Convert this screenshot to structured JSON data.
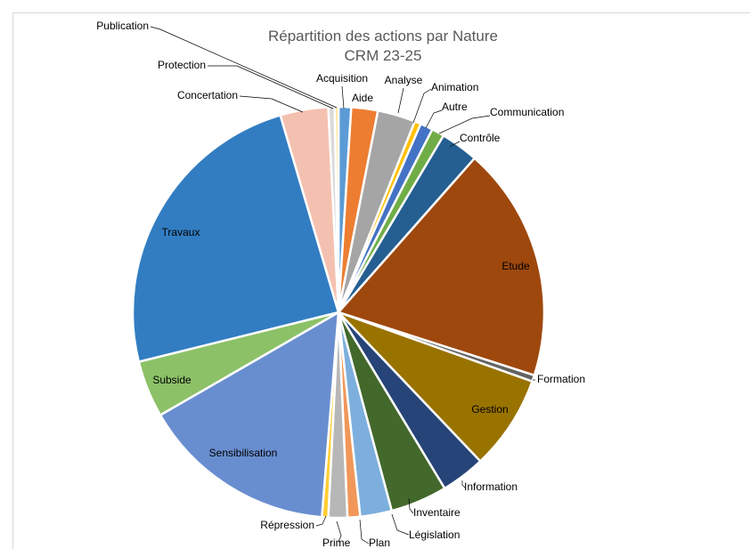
{
  "chart_data": {
    "type": "pie",
    "title": "Répartition des actions par Nature",
    "subtitle": "CRM 23-25",
    "slices": [
      {
        "label": "Acquisition",
        "value": 1.0,
        "color": "#5b9bd5"
      },
      {
        "label": "Aide",
        "value": 2.1,
        "color": "#ed7d31"
      },
      {
        "label": "Analyse",
        "value": 3.0,
        "color": "#a5a5a5"
      },
      {
        "label": "Animation",
        "value": 0.5,
        "color": "#ffc000"
      },
      {
        "label": "Autre",
        "value": 1.0,
        "color": "#4472c4"
      },
      {
        "label": "Communication",
        "value": 1.0,
        "color": "#70ad47"
      },
      {
        "label": "Contrôle",
        "value": 3.0,
        "color": "#255e91"
      },
      {
        "label": "Etude",
        "value": 18.6,
        "color": "#9e480e"
      },
      {
        "label": "Formation",
        "value": 0.5,
        "color": "#636363"
      },
      {
        "label": "Gestion",
        "value": 7.5,
        "color": "#997300"
      },
      {
        "label": "Information",
        "value": 3.5,
        "color": "#264478"
      },
      {
        "label": "Inventaire",
        "value": 4.5,
        "color": "#43682b"
      },
      {
        "label": "Législation",
        "value": 2.5,
        "color": "#7cafdd"
      },
      {
        "label": "Plan",
        "value": 1.0,
        "color": "#f1975a"
      },
      {
        "label": "Prime",
        "value": 1.5,
        "color": "#b7b7b7"
      },
      {
        "label": "Répression",
        "value": 0.5,
        "color": "#ffcd33"
      },
      {
        "label": "Sensibilisation",
        "value": 15.5,
        "color": "#698ed0"
      },
      {
        "label": "Subside",
        "value": 4.5,
        "color": "#8cc168"
      },
      {
        "label": "Travaux",
        "value": 24.5,
        "color": "#327dc2"
      },
      {
        "label": "Concertation",
        "value": 3.8,
        "color": "#f4c1b0"
      },
      {
        "label": "Protection",
        "value": 0.5,
        "color": "#d9d9d9"
      },
      {
        "label": "Publication",
        "value": 0.3,
        "color": "#ffe699"
      }
    ],
    "legend": "none",
    "start_angle": "top, clockwise"
  }
}
